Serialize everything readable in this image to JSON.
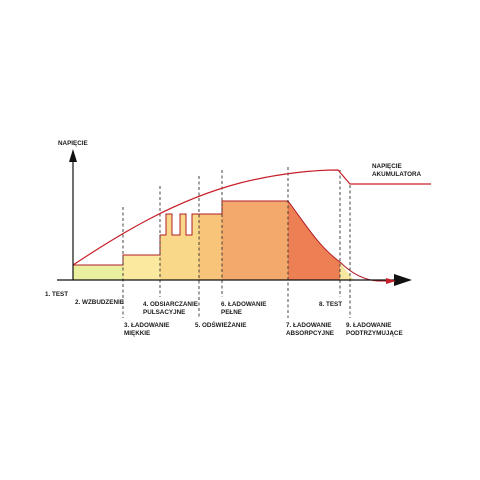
{
  "axis": {
    "y_title": "NAPIĘCIE"
  },
  "curve_label": {
    "line1": "NAPIĘCIE",
    "line2": "AKUMULATORA"
  },
  "stages": [
    {
      "label_lines": [
        "1. TEST"
      ]
    },
    {
      "label_lines": [
        "2. WZBUDZENIE"
      ]
    },
    {
      "label_lines": [
        "3. ŁADOWANIE",
        "MIĘKKIE"
      ]
    },
    {
      "label_lines": [
        "4. ODSIARCZANIE",
        "PULSACYJNE"
      ]
    },
    {
      "label_lines": [
        "5. ODŚWIEŻANIE"
      ]
    },
    {
      "label_lines": [
        "6. ŁADOWANIE",
        "PEŁNE"
      ]
    },
    {
      "label_lines": [
        "7. ŁADOWANIE",
        "ABSORPCYJNE"
      ]
    },
    {
      "label_lines": [
        "8. TEST"
      ]
    },
    {
      "label_lines": [
        "9. ŁADOWANIE",
        "PODTRZYMUJĄCE"
      ]
    }
  ],
  "colors": {
    "axis": "#111111",
    "dash": "#333333",
    "voltage_curve": "#c8202a",
    "current_outline": "#b01c24",
    "stage_2": "#e9ef9e",
    "stage_3": "#fbe9a0",
    "stage_4": "#f9d88a",
    "stage_5": "#f7c47a",
    "stage_6": "#f4a96c",
    "stage_7": "#ed7f55",
    "stage_8": "#f7e7a0"
  }
}
